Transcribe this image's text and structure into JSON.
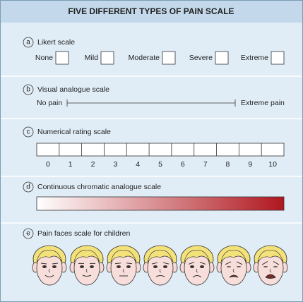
{
  "header": {
    "title": "FIVE DIFFERENT TYPES OF PAIN SCALE"
  },
  "sections": [
    {
      "letter": "a",
      "title": "Likert scale",
      "options": [
        "None",
        "Mild",
        "Moderate",
        "Severe",
        "Extreme"
      ]
    },
    {
      "letter": "b",
      "title": "Visual analogue scale",
      "left": "No pain",
      "right": "Extreme pain"
    },
    {
      "letter": "c",
      "title": "Numerical rating scale",
      "labels": [
        0,
        1,
        2,
        3,
        4,
        5,
        6,
        7,
        8,
        9,
        10
      ]
    },
    {
      "letter": "d",
      "title": "Continuous chromatic analogue scale"
    },
    {
      "letter": "e",
      "title": "Pain faces scale for children"
    }
  ]
}
